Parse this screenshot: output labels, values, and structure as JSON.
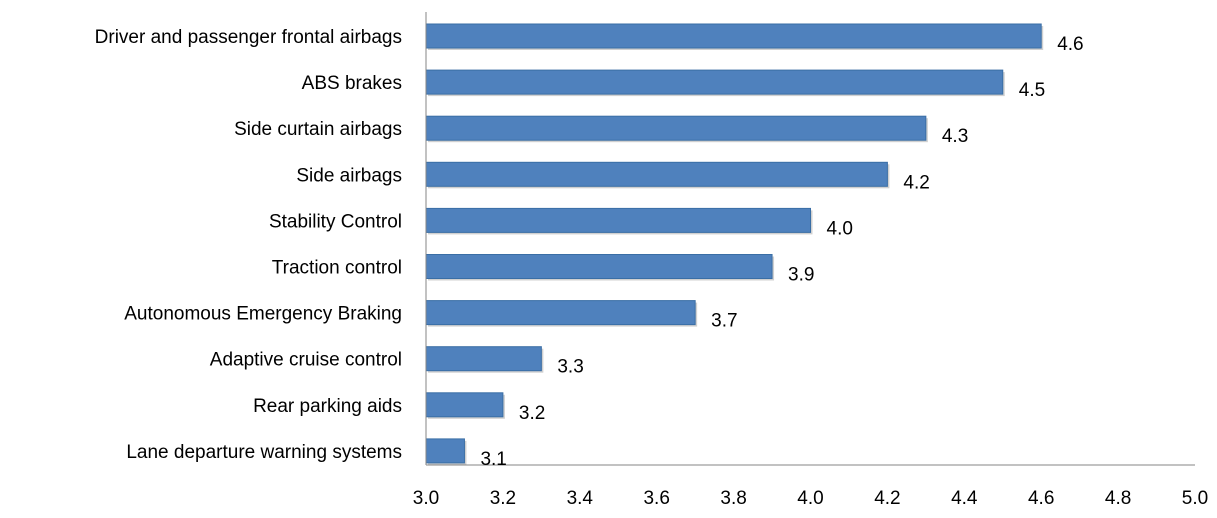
{
  "chart_data": {
    "type": "bar",
    "orientation": "horizontal",
    "categories": [
      "Driver and passenger frontal airbags",
      "ABS brakes",
      "Side curtain airbags",
      "Side airbags",
      "Stability Control",
      "Traction control",
      "Autonomous Emergency Braking",
      "Adaptive cruise control",
      "Rear parking aids",
      "Lane departure warning systems"
    ],
    "values": [
      4.6,
      4.5,
      4.3,
      4.2,
      4.0,
      3.9,
      3.7,
      3.3,
      3.2,
      3.1
    ],
    "value_labels": [
      "4.6",
      "4.5",
      "4.3",
      "4.2",
      "4.0",
      "3.9",
      "3.7",
      "3.3",
      "3.2",
      "3.1"
    ],
    "xlim": [
      3.0,
      5.0
    ],
    "xticks": [
      "3.0",
      "3.2",
      "3.4",
      "3.6",
      "3.8",
      "4.0",
      "4.2",
      "4.4",
      "4.6",
      "4.8",
      "5.0"
    ],
    "grid": false,
    "legend": "none",
    "bar_color": "#4f81bd",
    "bar_border_color": "#3a6ea5",
    "axis_color": "#868686"
  }
}
